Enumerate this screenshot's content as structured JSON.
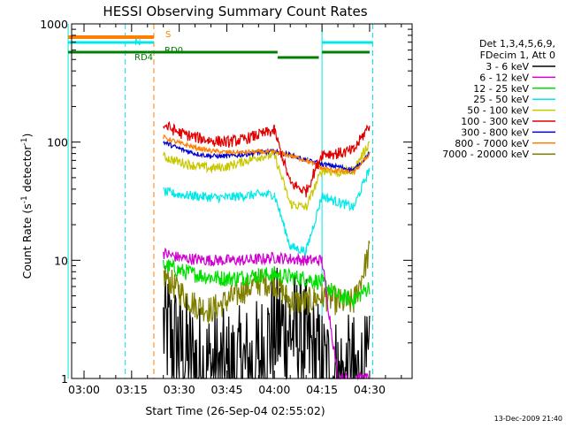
{
  "chart_data": {
    "type": "line",
    "title": "HESSI Observing Summary Count Rates",
    "xlabel": "Start Time (26-Sep-04 02:55:02)",
    "ylabel_main": "Count Rate (s",
    "ylabel_sup1": "-1",
    "ylabel_mid": " detector",
    "ylabel_sup2": "-1",
    "ylabel_end": ")",
    "yscale": "log",
    "ylim": [
      1,
      1000
    ],
    "xlim_minutes": [
      -5.03,
      33.6
    ],
    "x_ticks": [
      {
        "minute": 0,
        "label": "03:00"
      },
      {
        "minute": 15,
        "label": "03:15"
      },
      {
        "minute": 30,
        "label": "03:30"
      },
      {
        "minute": 45,
        "label": "03:45"
      },
      {
        "minute": 60,
        "label": "04:00"
      },
      {
        "minute": 75,
        "label": "04:15"
      },
      {
        "minute": 90,
        "label": "04:30"
      }
    ],
    "y_ticks": [
      {
        "value": 1,
        "label": "1"
      },
      {
        "value": 10,
        "label": "10"
      },
      {
        "value": 100,
        "label": "100"
      },
      {
        "value": 1000,
        "label": "1000"
      }
    ],
    "legend_title_lines": [
      "Det 1,3,4,5,6,9,",
      "FDecim 1, Att 0"
    ],
    "legend_position": "right",
    "series": [
      {
        "name": "3 - 6 keV",
        "color": "#000000",
        "x": [
          25,
          30,
          35,
          40,
          45,
          50,
          55,
          60,
          65,
          70,
          75,
          80,
          85,
          90
        ],
        "values": [
          2.7,
          1.8,
          1.3,
          1.2,
          1.1,
          1.2,
          1.4,
          2.6,
          2.6,
          2.0,
          1.2,
          1.0,
          1.0,
          1.0
        ]
      },
      {
        "name": "6 - 12 keV",
        "color": "#d000d0",
        "x": [
          25,
          30,
          35,
          40,
          45,
          50,
          55,
          60,
          65,
          70,
          75,
          80,
          85,
          90
        ],
        "values": [
          11.5,
          10.5,
          10.2,
          10.0,
          10.0,
          10.0,
          10.2,
          10.5,
          10.3,
          10.0,
          10.0,
          1.0,
          1.0,
          1.0
        ]
      },
      {
        "name": "12 - 25 keV",
        "color": "#00e000",
        "x": [
          25,
          30,
          35,
          40,
          45,
          50,
          55,
          60,
          65,
          70,
          75,
          80,
          85,
          90
        ],
        "values": [
          9.2,
          8.2,
          7.6,
          7.2,
          7.0,
          7.2,
          7.5,
          7.6,
          7.2,
          7.0,
          6.5,
          5.0,
          4.6,
          6.0
        ]
      },
      {
        "name": "25 - 50 keV",
        "color": "#00e8e8",
        "x": [
          25,
          30,
          35,
          40,
          45,
          50,
          55,
          60,
          65,
          70,
          75,
          80,
          85,
          90
        ],
        "values": [
          38,
          36,
          35,
          34,
          34,
          35,
          36,
          36,
          13,
          12,
          35,
          31,
          28,
          60
        ]
      },
      {
        "name": "50 - 100 keV",
        "color": "#c8c800",
        "x": [
          25,
          30,
          35,
          40,
          45,
          50,
          55,
          60,
          65,
          70,
          75,
          80,
          85,
          90
        ],
        "values": [
          75,
          68,
          63,
          60,
          62,
          68,
          75,
          78,
          30,
          28,
          58,
          55,
          58,
          100
        ]
      },
      {
        "name": "100 - 300 keV",
        "color": "#e00000",
        "x": [
          25,
          30,
          35,
          40,
          45,
          50,
          55,
          60,
          65,
          70,
          75,
          80,
          85,
          90
        ],
        "values": [
          140,
          120,
          110,
          103,
          100,
          105,
          115,
          125,
          45,
          38,
          80,
          80,
          85,
          140
        ]
      },
      {
        "name": "300 - 800 keV",
        "color": "#0000d0",
        "x": [
          25,
          30,
          35,
          40,
          45,
          50,
          55,
          60,
          65,
          70,
          75,
          80,
          85,
          90
        ],
        "values": [
          100,
          88,
          80,
          76,
          76,
          78,
          82,
          83,
          78,
          70,
          65,
          62,
          58,
          80
        ]
      },
      {
        "name": "800 - 7000 keV",
        "color": "#ff8000",
        "x": [
          25,
          30,
          35,
          40,
          45,
          50,
          55,
          60,
          65,
          70,
          75,
          80,
          85,
          90
        ],
        "values": [
          110,
          98,
          90,
          84,
          82,
          82,
          83,
          82,
          77,
          70,
          60,
          57,
          55,
          80
        ]
      },
      {
        "name": "7000 - 20000 keV",
        "color": "#808000",
        "x": [
          25,
          30,
          35,
          40,
          45,
          50,
          55,
          60,
          65,
          70,
          75,
          80,
          85,
          90
        ],
        "values": [
          7.5,
          5.5,
          4.2,
          3.8,
          4.5,
          5.5,
          6.5,
          6.5,
          4.5,
          4.4,
          5.0,
          4.4,
          4.4,
          12
        ]
      }
    ],
    "flag_bars": [
      {
        "label": "S",
        "color": "#ff8000",
        "segments": [
          [
            -5,
            22
          ]
        ]
      },
      {
        "label": "N",
        "color": "#00e8e8",
        "segments": [
          [
            -5,
            22
          ],
          [
            75,
            91
          ]
        ]
      },
      {
        "label": "RD4",
        "color": "#008000",
        "segments": [
          [
            -5,
            20
          ]
        ]
      },
      {
        "label": "RD0",
        "color": "#008000",
        "segments": [
          [
            20,
            22
          ],
          [
            22,
            61
          ],
          [
            61,
            74
          ],
          [
            75,
            90
          ]
        ]
      }
    ],
    "vertical_markers": [
      {
        "minute": -5,
        "color": "#00e8e8",
        "style": "solid"
      },
      {
        "minute": 13,
        "color": "#00e8e8",
        "style": "dashed"
      },
      {
        "minute": 22,
        "color": "#ff8000",
        "style": "dashed"
      },
      {
        "minute": 75,
        "color": "#00e8e8",
        "style": "solid"
      },
      {
        "minute": 91,
        "color": "#00e8e8",
        "style": "dashed"
      }
    ],
    "footer_date": "13-Dec-2009 21:40"
  }
}
